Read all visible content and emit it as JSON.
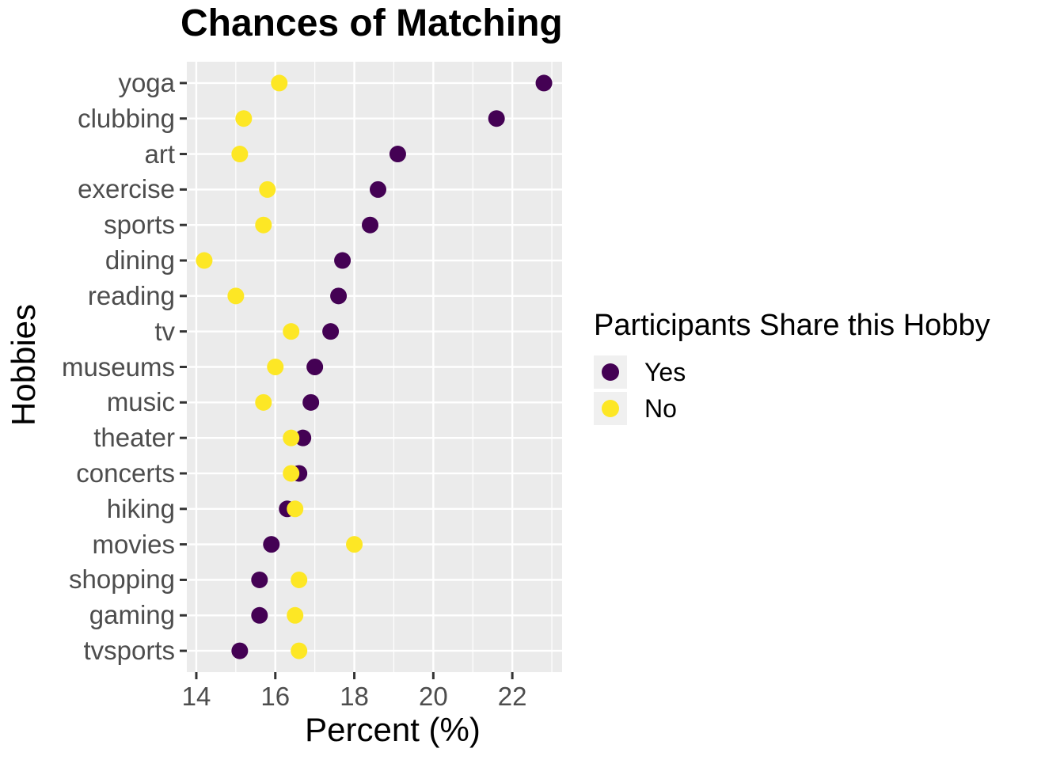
{
  "colors": {
    "yes": "#440154",
    "no": "#FDE725",
    "panel_background": "#EBEBEB",
    "gridline": "#FFFFFF",
    "legend_key_background": "#F0F0F0",
    "axis_text": "#4D4D4D",
    "tick_mark": "#333333",
    "text": "#000000"
  },
  "legend": {
    "title": "Participants Share this Hobby",
    "items": [
      {
        "label": "Yes",
        "color": "#440154"
      },
      {
        "label": "No",
        "color": "#FDE725"
      }
    ]
  },
  "chart_data": {
    "type": "scatter",
    "title": "Chances of Matching",
    "xlabel": "Percent (%)",
    "ylabel": "Hobbies",
    "legend_title": "Participants Share this Hobby",
    "legend_position": "right",
    "grid": true,
    "x_ticks": [
      14,
      16,
      18,
      20,
      22
    ],
    "x_minor_ticks": [
      15,
      17,
      19,
      21,
      23
    ],
    "xlim": [
      13.76,
      23.26
    ],
    "categories": [
      "yoga",
      "clubbing",
      "art",
      "exercise",
      "sports",
      "dining",
      "reading",
      "tv",
      "museums",
      "music",
      "theater",
      "concerts",
      "hiking",
      "movies",
      "shopping",
      "gaming",
      "tvsports"
    ],
    "series": [
      {
        "name": "Yes",
        "color": "#440154",
        "values": [
          22.8,
          21.6,
          19.1,
          18.6,
          18.4,
          17.7,
          17.6,
          17.4,
          17.0,
          16.9,
          16.7,
          16.6,
          16.3,
          15.9,
          15.6,
          15.6,
          15.1
        ]
      },
      {
        "name": "No",
        "color": "#FDE725",
        "values": [
          16.1,
          15.2,
          15.1,
          15.8,
          15.7,
          14.2,
          15.0,
          16.4,
          16.0,
          15.7,
          16.4,
          16.4,
          16.5,
          18.0,
          16.6,
          16.5,
          16.6
        ]
      }
    ]
  }
}
